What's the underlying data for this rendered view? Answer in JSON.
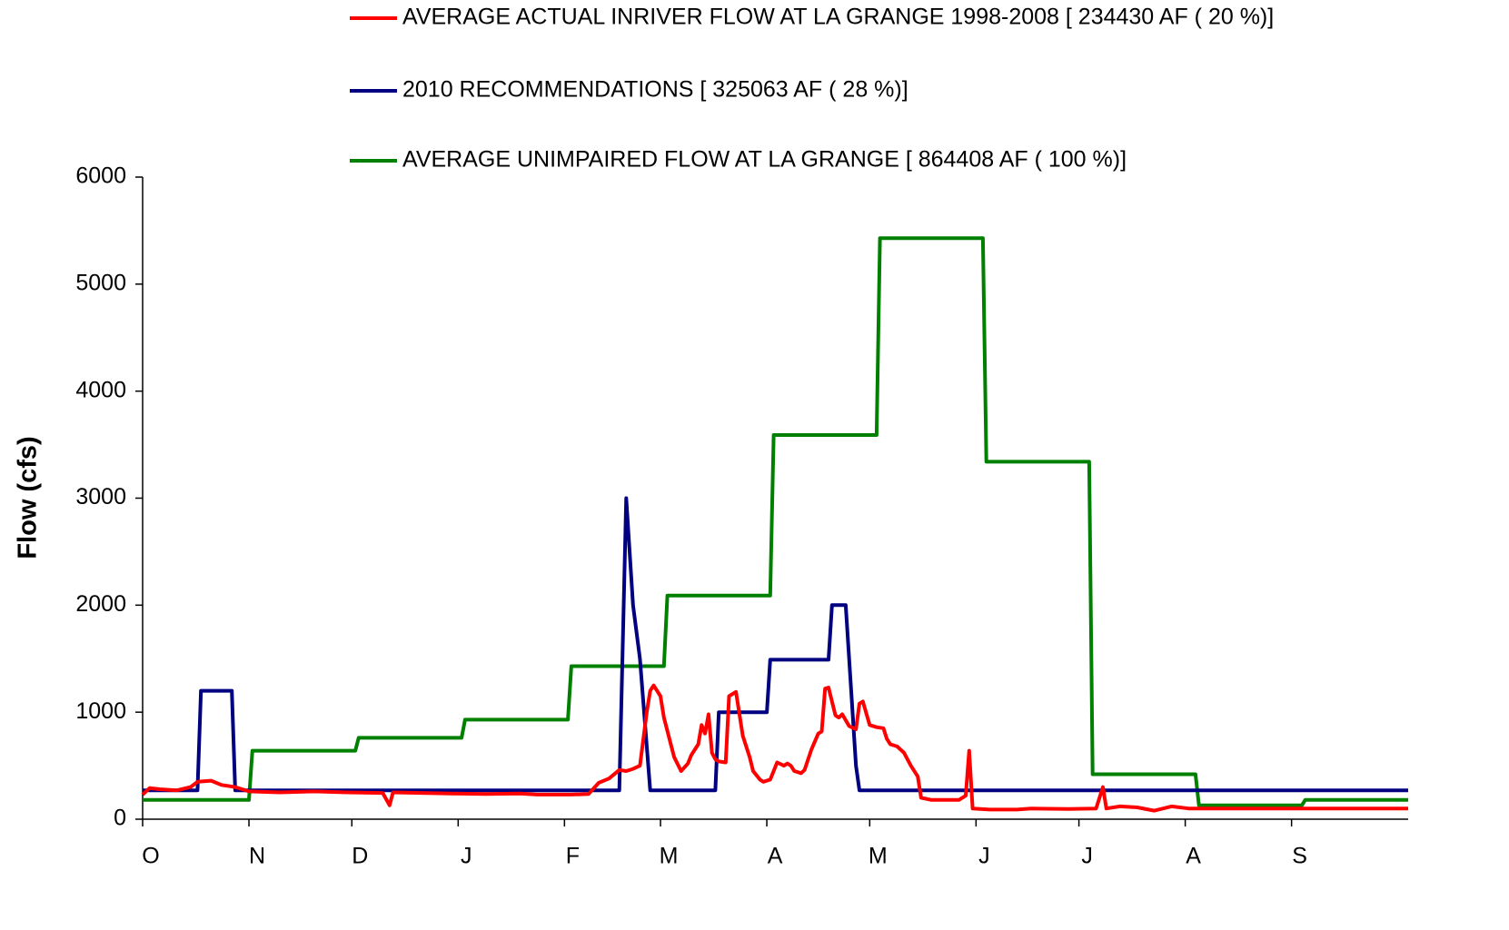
{
  "chart_data": {
    "type": "line",
    "y_label": "Flow (cfs)",
    "ylim": [
      0,
      6000
    ],
    "yticks": [
      0,
      1000,
      2000,
      3000,
      4000,
      5000,
      6000
    ],
    "xlim": [
      0,
      369
    ],
    "xticks": [
      {
        "value": 0,
        "label": "O"
      },
      {
        "value": 31,
        "label": "N"
      },
      {
        "value": 61,
        "label": "D"
      },
      {
        "value": 92,
        "label": "J"
      },
      {
        "value": 123,
        "label": "F"
      },
      {
        "value": 151,
        "label": "M"
      },
      {
        "value": 182,
        "label": "A"
      },
      {
        "value": 212,
        "label": "M"
      },
      {
        "value": 243,
        "label": "J"
      },
      {
        "value": 273,
        "label": "J"
      },
      {
        "value": 304,
        "label": "A"
      },
      {
        "value": 335,
        "label": "S"
      }
    ],
    "grid": false,
    "series": [
      {
        "name": "AVERAGE ACTUAL INRIVER FLOW AT LA GRANGE 1998-2008 [ 234430 AF ( 20 %)]",
        "color": "#ff0000",
        "x": [
          0,
          2,
          5,
          10,
          14,
          16,
          20,
          23,
          27,
          31,
          40,
          50,
          60,
          70,
          72,
          73,
          90,
          100,
          110,
          115,
          125,
          130,
          133,
          136,
          139,
          141,
          143,
          145,
          147,
          148,
          149,
          151,
          152,
          154,
          155,
          157,
          159,
          160,
          162,
          163,
          164,
          165,
          166,
          167,
          168,
          170,
          171,
          173,
          175,
          177,
          178,
          180,
          181,
          183,
          184,
          185,
          187,
          188,
          189,
          190,
          192,
          193,
          195,
          197,
          198,
          199,
          200,
          202,
          203,
          204,
          206,
          208,
          209,
          210,
          212,
          214,
          216,
          217,
          218,
          220,
          222,
          224,
          226,
          227,
          230,
          238,
          240,
          241,
          242,
          247,
          255,
          259,
          270,
          278,
          280,
          281,
          285,
          290,
          295,
          300,
          305,
          330,
          340,
          355,
          369
        ],
        "values": [
          230,
          290,
          280,
          270,
          300,
          350,
          360,
          320,
          300,
          260,
          250,
          260,
          250,
          245,
          130,
          250,
          240,
          235,
          240,
          230,
          230,
          235,
          340,
          380,
          460,
          450,
          470,
          500,
          1000,
          1200,
          1250,
          1150,
          950,
          700,
          580,
          450,
          520,
          600,
          700,
          880,
          800,
          980,
          620,
          560,
          540,
          530,
          1150,
          1190,
          780,
          580,
          450,
          370,
          350,
          370,
          450,
          530,
          500,
          520,
          500,
          450,
          430,
          460,
          650,
          800,
          820,
          1220,
          1230,
          970,
          950,
          980,
          870,
          840,
          1080,
          1100,
          880,
          860,
          850,
          750,
          700,
          680,
          620,
          500,
          400,
          200,
          180,
          180,
          220,
          640,
          100,
          90,
          90,
          100,
          95,
          100,
          300,
          100,
          120,
          110,
          80,
          120,
          100,
          100,
          100,
          100,
          100
        ]
      },
      {
        "name": "2010 RECOMMENDATIONS [ 325063 AF ( 28 %)]",
        "color": "#000080",
        "x": [
          0,
          16,
          17,
          26,
          27,
          139,
          141,
          143,
          145,
          148,
          167,
          168,
          182,
          183,
          200,
          201,
          205,
          208,
          209,
          369
        ],
        "values": [
          270,
          270,
          1200,
          1200,
          270,
          270,
          3000,
          2000,
          1500,
          270,
          270,
          1000,
          1000,
          1490,
          1490,
          2000,
          2000,
          500,
          270,
          270
        ]
      },
      {
        "name": "AVERAGE UNIMPAIRED FLOW AT LA GRANGE [ 864408 AF ( 100 %)]",
        "color": "#008000",
        "x": [
          0,
          31,
          32,
          62,
          63,
          93,
          94,
          124,
          125,
          152,
          153,
          183,
          184,
          214,
          215,
          245,
          246,
          276,
          277,
          307,
          308,
          338,
          339,
          369
        ],
        "values": [
          180,
          180,
          640,
          640,
          760,
          760,
          930,
          930,
          1430,
          1430,
          2090,
          2090,
          3590,
          3590,
          5430,
          5430,
          3340,
          3340,
          420,
          420,
          130,
          130,
          180,
          180
        ]
      }
    ]
  }
}
